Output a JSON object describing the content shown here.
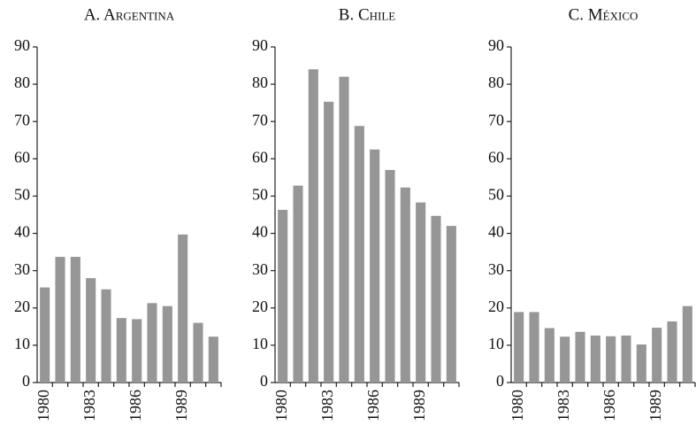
{
  "chart_data": [
    {
      "type": "bar",
      "title": "A. Argentina",
      "color": "#969696",
      "categories": [
        "1980",
        null,
        null,
        "1983",
        null,
        null,
        "1986",
        null,
        null,
        "1989",
        null,
        null
      ],
      "values": [
        25.5,
        33.7,
        33.7,
        28,
        25,
        17.3,
        17,
        21.3,
        20.5,
        39.7,
        16,
        12.3
      ],
      "ylim": [
        0,
        90
      ],
      "yticks": [
        0,
        10,
        20,
        30,
        40,
        50,
        60,
        70,
        80,
        90
      ]
    },
    {
      "type": "bar",
      "title": "B. Chile",
      "color": "#969696",
      "categories": [
        "1980",
        null,
        null,
        "1983",
        null,
        null,
        "1986",
        null,
        null,
        "1989",
        null,
        null
      ],
      "values": [
        46.3,
        52.8,
        84,
        75.3,
        82,
        68.8,
        62.5,
        57,
        52.3,
        48.3,
        44.7,
        42
      ],
      "ylim": [
        0,
        90
      ],
      "yticks": [
        0,
        10,
        20,
        30,
        40,
        50,
        60,
        70,
        80,
        90
      ]
    },
    {
      "type": "bar",
      "title": "C. México",
      "color": "#969696",
      "categories": [
        "1980",
        null,
        null,
        "1983",
        null,
        null,
        "1986",
        null,
        null,
        "1989",
        null,
        null
      ],
      "values": [
        18.9,
        18.9,
        14.6,
        12.3,
        13.6,
        12.6,
        12.4,
        12.6,
        10.2,
        14.7,
        16.4,
        20.5
      ],
      "ylim": [
        0,
        90
      ],
      "yticks": [
        0,
        10,
        20,
        30,
        40,
        50,
        60,
        70,
        80,
        90
      ]
    }
  ]
}
